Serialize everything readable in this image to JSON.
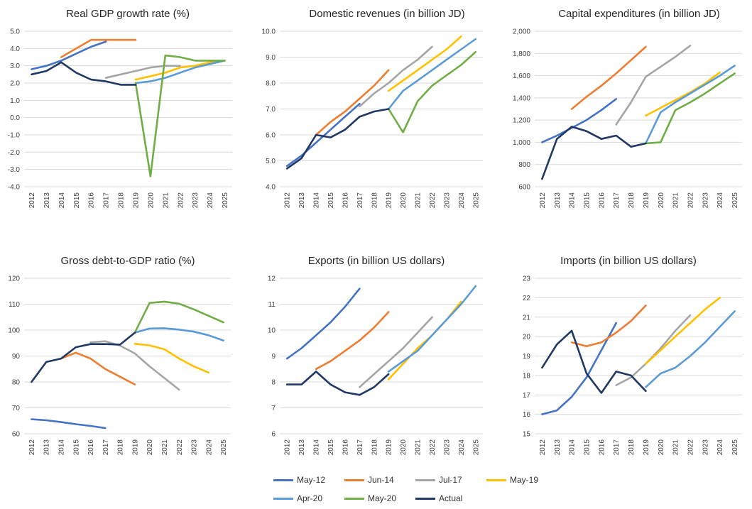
{
  "series_colors": {
    "May-12": "#4472C4",
    "Jun-14": "#ED7D31",
    "Jul-17": "#A5A5A5",
    "May-19": "#FFC000",
    "Apr-20": "#5B9BD5",
    "May-20": "#70AD47",
    "Actual": "#203864"
  },
  "legend": [
    {
      "name": "May-12",
      "color": "#4472C4"
    },
    {
      "name": "Jun-14",
      "color": "#ED7D31"
    },
    {
      "name": "Jul-17",
      "color": "#A5A5A5"
    },
    {
      "name": "May-19",
      "color": "#FFC000"
    },
    {
      "name": "Apr-20",
      "color": "#5B9BD5"
    },
    {
      "name": "May-20",
      "color": "#70AD47"
    },
    {
      "name": "Actual",
      "color": "#203864"
    }
  ],
  "chart_data": [
    {
      "type": "line",
      "title": "Real GDP growth rate (%)",
      "categories": [
        "2012",
        "2013",
        "2014",
        "2015",
        "2016",
        "2017",
        "2018",
        "2019",
        "2020",
        "2021",
        "2022",
        "2023",
        "2024",
        "2025"
      ],
      "ylim": [
        -4,
        5
      ],
      "yticks": [
        "-4.0",
        "-3.0",
        "-2.0",
        "-1.0",
        "0.0",
        "1.0",
        "2.0",
        "3.0",
        "4.0",
        "5.0"
      ],
      "grid": true,
      "series": [
        {
          "name": "May-12",
          "values": [
            2.8,
            3.0,
            3.3,
            3.7,
            4.1,
            4.4,
            null,
            null,
            null,
            null,
            null,
            null,
            null,
            null
          ]
        },
        {
          "name": "Jun-14",
          "values": [
            null,
            null,
            3.5,
            4.0,
            4.5,
            4.5,
            4.5,
            4.5,
            null,
            null,
            null,
            null,
            null,
            null
          ]
        },
        {
          "name": "Jul-17",
          "values": [
            null,
            null,
            null,
            null,
            null,
            2.3,
            2.5,
            2.7,
            2.9,
            3.0,
            3.0,
            null,
            null,
            null
          ]
        },
        {
          "name": "May-19",
          "values": [
            null,
            null,
            null,
            null,
            null,
            null,
            null,
            2.2,
            2.4,
            2.6,
            2.9,
            3.0,
            3.2,
            3.3
          ]
        },
        {
          "name": "Apr-20",
          "values": [
            null,
            null,
            null,
            null,
            null,
            null,
            null,
            2.0,
            2.1,
            2.3,
            2.6,
            2.9,
            3.1,
            3.3
          ]
        },
        {
          "name": "May-20",
          "values": [
            null,
            null,
            null,
            null,
            null,
            null,
            null,
            2.0,
            -3.4,
            3.6,
            3.5,
            3.3,
            3.3,
            3.3
          ]
        },
        {
          "name": "Actual",
          "values": [
            2.5,
            2.7,
            3.2,
            2.6,
            2.2,
            2.1,
            1.9,
            1.9,
            null,
            null,
            null,
            null,
            null,
            null
          ]
        }
      ]
    },
    {
      "type": "line",
      "title": "Domestic revenues (in billion JD)",
      "categories": [
        "2012",
        "2013",
        "2014",
        "2015",
        "2016",
        "2017",
        "2018",
        "2019",
        "2020",
        "2021",
        "2022",
        "2023",
        "2024",
        "2025"
      ],
      "ylim": [
        4,
        10
      ],
      "yticks": [
        "4.0",
        "5.0",
        "6.0",
        "7.0",
        "8.0",
        "9.0",
        "10.0"
      ],
      "grid": true,
      "series": [
        {
          "name": "May-12",
          "values": [
            4.8,
            5.2,
            5.7,
            6.2,
            6.7,
            7.2,
            null,
            null,
            null,
            null,
            null,
            null,
            null,
            null
          ]
        },
        {
          "name": "Jun-14",
          "values": [
            null,
            null,
            6.0,
            6.5,
            6.9,
            7.4,
            7.9,
            8.5,
            null,
            null,
            null,
            null,
            null,
            null
          ]
        },
        {
          "name": "Jul-17",
          "values": [
            null,
            null,
            null,
            null,
            null,
            7.1,
            7.6,
            8.0,
            8.5,
            8.9,
            9.4,
            null,
            null,
            null
          ]
        },
        {
          "name": "May-19",
          "values": [
            null,
            null,
            null,
            null,
            null,
            null,
            null,
            7.7,
            8.1,
            8.5,
            8.9,
            9.3,
            9.8,
            null
          ]
        },
        {
          "name": "Apr-20",
          "values": [
            null,
            null,
            null,
            null,
            null,
            null,
            null,
            7.0,
            7.7,
            8.1,
            8.5,
            8.9,
            9.3,
            9.7
          ]
        },
        {
          "name": "May-20",
          "values": [
            null,
            null,
            null,
            null,
            null,
            null,
            null,
            7.0,
            6.1,
            7.3,
            7.9,
            8.3,
            8.7,
            9.2
          ]
        },
        {
          "name": "Actual",
          "values": [
            4.7,
            5.1,
            6.0,
            5.9,
            6.2,
            6.7,
            6.9,
            7.0,
            null,
            null,
            null,
            null,
            null,
            null
          ]
        }
      ]
    },
    {
      "type": "line",
      "title": "Capital expenditures (in billion JD)",
      "categories": [
        "2012",
        "2013",
        "2014",
        "2015",
        "2016",
        "2017",
        "2018",
        "2019",
        "2020",
        "2021",
        "2022",
        "2023",
        "2024",
        "2025"
      ],
      "ylim": [
        600,
        2000
      ],
      "yticks": [
        "600",
        "800",
        "1,000",
        "1,200",
        "1,400",
        "1,600",
        "1,800",
        "2,000"
      ],
      "grid": true,
      "series": [
        {
          "name": "May-12",
          "values": [
            1000,
            1060,
            1130,
            1200,
            1290,
            1390,
            null,
            null,
            null,
            null,
            null,
            null,
            null,
            null
          ]
        },
        {
          "name": "Jun-14",
          "values": [
            null,
            null,
            1300,
            1410,
            1510,
            1620,
            1740,
            1860,
            null,
            null,
            null,
            null,
            null,
            null
          ]
        },
        {
          "name": "Jul-17",
          "values": [
            null,
            null,
            null,
            null,
            null,
            1160,
            1360,
            1590,
            1680,
            1770,
            1870,
            null,
            null,
            null
          ]
        },
        {
          "name": "May-19",
          "values": [
            null,
            null,
            null,
            null,
            null,
            null,
            null,
            1240,
            1310,
            1380,
            1450,
            1530,
            1630,
            null
          ]
        },
        {
          "name": "Apr-20",
          "values": [
            null,
            null,
            null,
            null,
            null,
            null,
            null,
            990,
            1270,
            1360,
            1440,
            1520,
            1600,
            1690
          ]
        },
        {
          "name": "May-20",
          "values": [
            null,
            null,
            null,
            null,
            null,
            null,
            null,
            990,
            1000,
            1290,
            1360,
            1440,
            1530,
            1620
          ]
        },
        {
          "name": "Actual",
          "values": [
            670,
            1030,
            1140,
            1100,
            1030,
            1060,
            960,
            990,
            null,
            null,
            null,
            null,
            null,
            null
          ]
        }
      ]
    },
    {
      "type": "line",
      "title": "Gross debt-to-GDP ratio (%)",
      "categories": [
        "2012",
        "2013",
        "2014",
        "2015",
        "2016",
        "2017",
        "2018",
        "2019",
        "2020",
        "2021",
        "2022",
        "2023",
        "2024",
        "2025"
      ],
      "ylim": [
        60,
        120
      ],
      "yticks": [
        "60",
        "70",
        "80",
        "90",
        "100",
        "110",
        "120"
      ],
      "grid": true,
      "series": [
        {
          "name": "May-12",
          "values": [
            65.6,
            65.2,
            64.5,
            63.7,
            63.0,
            62.2,
            null,
            null,
            null,
            null,
            null,
            null,
            null,
            null
          ]
        },
        {
          "name": "Jun-14",
          "values": [
            null,
            null,
            89.0,
            91.3,
            89.0,
            85.0,
            82.0,
            79.0,
            null,
            null,
            null,
            null,
            null,
            null
          ]
        },
        {
          "name": "Jul-17",
          "values": [
            null,
            null,
            null,
            null,
            95.3,
            95.7,
            94.0,
            91.0,
            86.0,
            81.5,
            77.0,
            null,
            null,
            null
          ]
        },
        {
          "name": "May-19",
          "values": [
            null,
            null,
            null,
            null,
            null,
            null,
            null,
            94.7,
            94.1,
            92.6,
            89.0,
            86.0,
            83.6,
            null
          ]
        },
        {
          "name": "Apr-20",
          "values": [
            null,
            null,
            null,
            null,
            null,
            null,
            null,
            99.0,
            100.6,
            100.7,
            100.2,
            99.4,
            98.0,
            96.0
          ]
        },
        {
          "name": "May-20",
          "values": [
            null,
            null,
            null,
            null,
            null,
            null,
            null,
            99.0,
            110.5,
            111.0,
            110.2,
            108.0,
            105.5,
            103.0
          ]
        },
        {
          "name": "Actual",
          "values": [
            80.0,
            87.7,
            89.0,
            93.4,
            94.6,
            94.6,
            94.4,
            99.0,
            null,
            null,
            null,
            null,
            null,
            null
          ]
        }
      ]
    },
    {
      "type": "line",
      "title": "Exports (in billion US dollars)",
      "categories": [
        "2012",
        "2013",
        "2014",
        "2015",
        "2016",
        "2017",
        "2018",
        "2019",
        "2020",
        "2021",
        "2022",
        "2023",
        "2024",
        "2025"
      ],
      "ylim": [
        6,
        12
      ],
      "yticks": [
        "6",
        "7",
        "8",
        "9",
        "10",
        "11",
        "12"
      ],
      "grid": true,
      "series": [
        {
          "name": "May-12",
          "values": [
            8.9,
            9.3,
            9.8,
            10.3,
            10.9,
            11.6,
            null,
            null,
            null,
            null,
            null,
            null,
            null,
            null
          ]
        },
        {
          "name": "Jun-14",
          "values": [
            null,
            null,
            8.5,
            8.8,
            9.2,
            9.6,
            10.1,
            10.7,
            null,
            null,
            null,
            null,
            null,
            null
          ]
        },
        {
          "name": "Jul-17",
          "values": [
            null,
            null,
            null,
            null,
            null,
            7.8,
            8.3,
            8.8,
            9.3,
            9.9,
            10.5,
            null,
            null,
            null
          ]
        },
        {
          "name": "May-19",
          "values": [
            null,
            null,
            null,
            null,
            null,
            null,
            null,
            8.1,
            8.7,
            9.3,
            9.8,
            10.4,
            11.1,
            null
          ]
        },
        {
          "name": "Apr-20",
          "values": [
            null,
            null,
            null,
            null,
            null,
            null,
            null,
            8.4,
            8.8,
            9.2,
            9.8,
            10.4,
            11.0,
            11.7
          ]
        },
        {
          "name": "Actual",
          "values": [
            7.9,
            7.9,
            8.4,
            7.9,
            7.6,
            7.5,
            7.8,
            8.3,
            null,
            null,
            null,
            null,
            null,
            null
          ]
        }
      ]
    },
    {
      "type": "line",
      "title": "Imports  (in billion US dollars)",
      "categories": [
        "2012",
        "2013",
        "2014",
        "2015",
        "2016",
        "2017",
        "2018",
        "2019",
        "2020",
        "2021",
        "2022",
        "2023",
        "2024",
        "2025"
      ],
      "ylim": [
        15,
        23
      ],
      "yticks": [
        "15",
        "16",
        "17",
        "18",
        "19",
        "20",
        "21",
        "22",
        "23"
      ],
      "grid": true,
      "series": [
        {
          "name": "May-12",
          "values": [
            16.0,
            16.2,
            16.9,
            17.9,
            19.3,
            20.7,
            null,
            null,
            null,
            null,
            null,
            null,
            null,
            null
          ]
        },
        {
          "name": "Jun-14",
          "values": [
            null,
            null,
            19.7,
            19.5,
            19.7,
            20.2,
            20.8,
            21.6,
            null,
            null,
            null,
            null,
            null,
            null
          ]
        },
        {
          "name": "Jul-17",
          "values": [
            null,
            null,
            null,
            null,
            null,
            17.5,
            17.9,
            18.6,
            19.4,
            20.3,
            21.1,
            null,
            null,
            null
          ]
        },
        {
          "name": "May-19",
          "values": [
            null,
            null,
            null,
            null,
            null,
            null,
            null,
            18.6,
            19.3,
            20.0,
            20.7,
            21.4,
            22.0,
            null
          ]
        },
        {
          "name": "Apr-20",
          "values": [
            null,
            null,
            null,
            null,
            null,
            null,
            null,
            17.4,
            18.1,
            18.4,
            19.0,
            19.7,
            20.5,
            21.3
          ]
        },
        {
          "name": "Actual",
          "values": [
            18.4,
            19.6,
            20.3,
            18.1,
            17.1,
            18.2,
            18.0,
            17.2,
            null,
            null,
            null,
            null,
            null,
            null
          ]
        }
      ]
    }
  ]
}
